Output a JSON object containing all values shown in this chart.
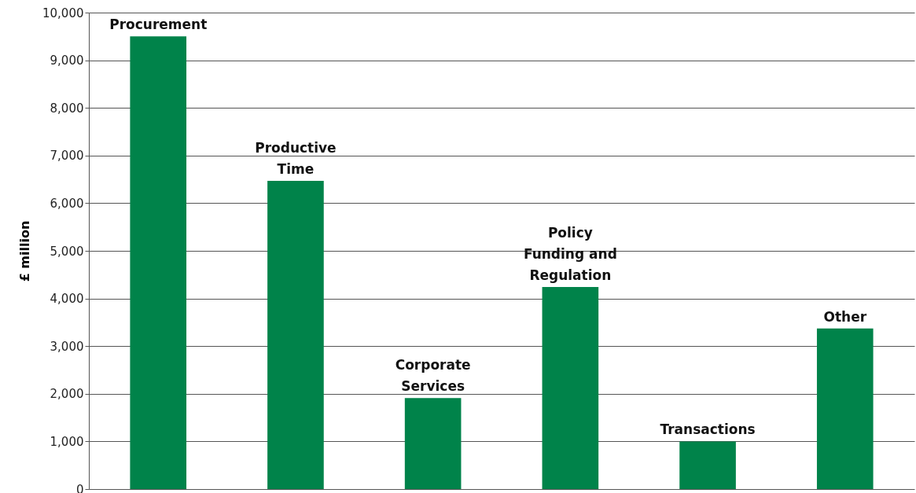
{
  "chart_data": {
    "type": "bar",
    "ylabel": "£ million",
    "categories": [
      "Procurement",
      "Productive Time",
      "Corporate Services",
      "Policy Funding and Regulation",
      "Transactions",
      "Other"
    ],
    "values": [
      9500,
      6470,
      1910,
      4240,
      1000,
      3370
    ],
    "color": "#00834a",
    "ylim": [
      0,
      10000
    ],
    "yticks": [
      0,
      {
        "value": 1000,
        "label": "1,000"
      },
      {
        "value": 2000,
        "label": "2,000"
      },
      {
        "value": 3000,
        "label": "3,000"
      },
      {
        "value": 4000,
        "label": "4,000"
      },
      {
        "value": 5000,
        "label": "5,000"
      },
      {
        "value": 6000,
        "label": "6,000"
      },
      {
        "value": 7000,
        "label": "7,000"
      },
      {
        "value": 8000,
        "label": "8,000"
      },
      {
        "value": 9000,
        "label": "9,000"
      },
      {
        "value": 10000,
        "label": "10,000"
      }
    ],
    "grid": "y",
    "tick_labels": "y"
  }
}
